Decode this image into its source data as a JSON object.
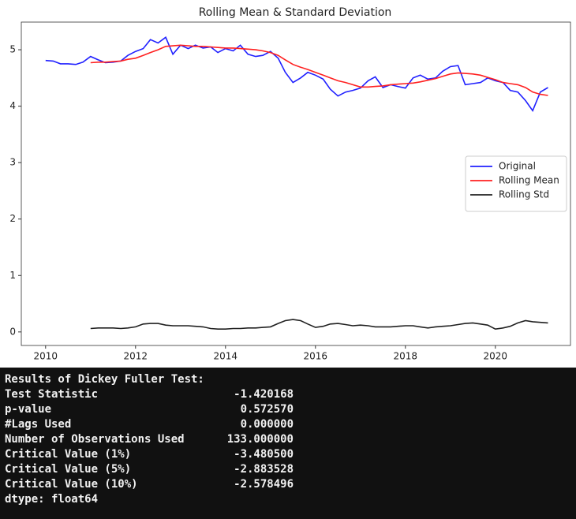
{
  "chart_data": {
    "type": "line",
    "title": "Rolling Mean & Standard Deviation",
    "x": [
      2010,
      2010.17,
      2010.33,
      2010.5,
      2010.67,
      2010.83,
      2011,
      2011.17,
      2011.33,
      2011.5,
      2011.67,
      2011.83,
      2012,
      2012.17,
      2012.33,
      2012.5,
      2012.67,
      2012.83,
      2013,
      2013.17,
      2013.33,
      2013.5,
      2013.67,
      2013.83,
      2014,
      2014.17,
      2014.33,
      2014.5,
      2014.67,
      2014.83,
      2015,
      2015.17,
      2015.33,
      2015.5,
      2015.67,
      2015.83,
      2016,
      2016.17,
      2016.33,
      2016.5,
      2016.67,
      2016.83,
      2017,
      2017.17,
      2017.33,
      2017.5,
      2017.67,
      2017.83,
      2018,
      2018.17,
      2018.33,
      2018.5,
      2018.67,
      2018.83,
      2019,
      2019.17,
      2019.33,
      2019.5,
      2019.67,
      2019.83,
      2020,
      2020.17,
      2020.33,
      2020.5,
      2020.67,
      2020.83,
      2021,
      2021.17
    ],
    "series": [
      {
        "name": "Original",
        "color": "#2020ff",
        "values": [
          4.81,
          4.8,
          4.75,
          4.75,
          4.74,
          4.78,
          4.88,
          4.82,
          4.77,
          4.78,
          4.8,
          4.9,
          4.97,
          5.02,
          5.18,
          5.12,
          5.22,
          4.92,
          5.08,
          5.02,
          5.08,
          5.03,
          5.05,
          4.95,
          5.02,
          4.98,
          5.08,
          4.92,
          4.88,
          4.9,
          4.97,
          4.85,
          4.6,
          4.42,
          4.5,
          4.6,
          4.55,
          4.48,
          4.3,
          4.18,
          4.25,
          4.28,
          4.32,
          4.45,
          4.52,
          4.33,
          4.38,
          4.35,
          4.32,
          4.5,
          4.55,
          4.48,
          4.5,
          4.62,
          4.7,
          4.72,
          4.38,
          4.4,
          4.42,
          4.5,
          4.45,
          4.42,
          4.28,
          4.25,
          4.1,
          3.92,
          4.25,
          4.33
        ]
      },
      {
        "name": "Rolling Mean",
        "color": "#ff2020",
        "values": [
          null,
          null,
          null,
          null,
          null,
          null,
          4.77,
          4.78,
          4.78,
          4.79,
          4.8,
          4.83,
          4.85,
          4.9,
          4.95,
          5.0,
          5.06,
          5.07,
          5.08,
          5.07,
          5.06,
          5.06,
          5.05,
          5.04,
          5.03,
          5.03,
          5.02,
          5.01,
          5.0,
          4.98,
          4.95,
          4.9,
          4.82,
          4.74,
          4.69,
          4.65,
          4.6,
          4.55,
          4.5,
          4.45,
          4.42,
          4.38,
          4.34,
          4.34,
          4.35,
          4.36,
          4.38,
          4.39,
          4.4,
          4.41,
          4.43,
          4.46,
          4.49,
          4.53,
          4.57,
          4.59,
          4.58,
          4.57,
          4.55,
          4.51,
          4.47,
          4.42,
          4.4,
          4.38,
          4.33,
          4.25,
          4.21,
          4.19
        ]
      },
      {
        "name": "Rolling Std",
        "color": "#202020",
        "values": [
          null,
          null,
          null,
          null,
          null,
          null,
          0.06,
          0.07,
          0.07,
          0.07,
          0.06,
          0.07,
          0.09,
          0.14,
          0.15,
          0.15,
          0.12,
          0.11,
          0.11,
          0.11,
          0.1,
          0.09,
          0.06,
          0.05,
          0.05,
          0.06,
          0.06,
          0.07,
          0.07,
          0.08,
          0.09,
          0.15,
          0.2,
          0.22,
          0.2,
          0.14,
          0.08,
          0.1,
          0.14,
          0.15,
          0.13,
          0.11,
          0.12,
          0.11,
          0.09,
          0.09,
          0.09,
          0.1,
          0.11,
          0.11,
          0.09,
          0.07,
          0.09,
          0.1,
          0.11,
          0.13,
          0.15,
          0.16,
          0.14,
          0.12,
          0.05,
          0.07,
          0.1,
          0.16,
          0.2,
          0.18,
          0.17,
          0.16
        ]
      }
    ],
    "xlim": [
      2009.46,
      2021.67
    ],
    "xticks": [
      2010,
      2012,
      2014,
      2016,
      2018,
      2020
    ],
    "ylim": [
      -0.24,
      5.49
    ],
    "yticks": [
      0,
      1,
      2,
      3,
      4,
      5
    ],
    "grid": false,
    "legend": "center right"
  },
  "console": {
    "title": "Results of Dickey Fuller Test:",
    "rows": [
      [
        "Test Statistic",
        "-1.420168"
      ],
      [
        "p-value",
        "0.572570"
      ],
      [
        "#Lags Used",
        "0.000000"
      ],
      [
        "Number of Observations Used",
        "133.000000"
      ],
      [
        "Critical Value (1%)",
        "-3.480500"
      ],
      [
        "Critical Value (5%)",
        "-2.883528"
      ],
      [
        "Critical Value (10%)",
        "-2.578496"
      ]
    ],
    "footer": "dtype: float64"
  }
}
